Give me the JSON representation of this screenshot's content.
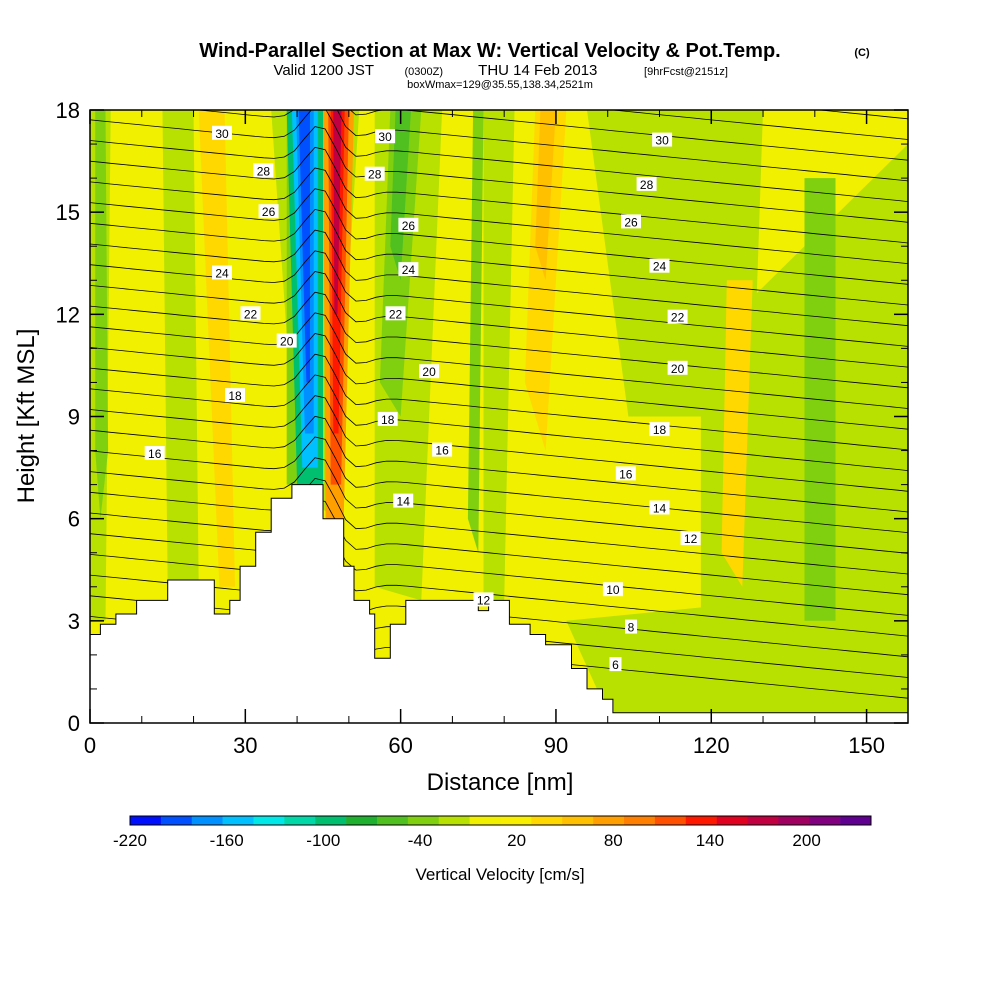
{
  "chart_data": {
    "type": "heatmap",
    "title": "Wind-Parallel Section at Max W: Vertical Velocity & Pot.Temp.",
    "title_mark": "(C)",
    "subtitle_valid": "Valid 1200 JST",
    "subtitle_z": "(0300Z)",
    "subtitle_date": "THU 14 Feb 2013",
    "subtitle_fcst": "[9hrFcst@2151z]",
    "subtitle_box": "boxWmax=129@35.55,138.34,2521m",
    "xlabel": "Distance [nm]",
    "ylabel": "Height [Kft MSL]",
    "xlim": [
      0,
      158
    ],
    "ylim": [
      0,
      18
    ],
    "x_ticks": [
      "0",
      "30",
      "60",
      "90",
      "120",
      "150"
    ],
    "x_tick_values": [
      0,
      30,
      60,
      90,
      120,
      150
    ],
    "y_ticks": [
      "0",
      "3",
      "6",
      "9",
      "12",
      "15",
      "18"
    ],
    "y_tick_values": [
      0,
      3,
      6,
      9,
      12,
      15,
      18
    ],
    "colorbar": {
      "label": "Vertical Velocity [cm/s]",
      "min": -220,
      "max": 240,
      "tick_labels": [
        "-220",
        "-160",
        "-100",
        "-40",
        "20",
        "80",
        "140",
        "200"
      ],
      "tick_values": [
        -220,
        -160,
        -100,
        -40,
        20,
        80,
        140,
        200
      ],
      "colors": [
        "#0010ff",
        "#0050ff",
        "#0090ff",
        "#00c0ff",
        "#00e8e8",
        "#00d8a8",
        "#00c070",
        "#20b030",
        "#50c020",
        "#80d010",
        "#b8e000",
        "#f0f000",
        "#f8f000",
        "#ffd800",
        "#ffc000",
        "#ffa000",
        "#ff8000",
        "#ff5000",
        "#ff1800",
        "#e00020",
        "#c00040",
        "#a00060",
        "#800080",
        "#600090"
      ]
    },
    "terrain_kft": [
      [
        0,
        2.6
      ],
      [
        2,
        2.6
      ],
      [
        2,
        2.9
      ],
      [
        5,
        2.9
      ],
      [
        5,
        3.2
      ],
      [
        9,
        3.2
      ],
      [
        9,
        3.6
      ],
      [
        15,
        3.6
      ],
      [
        15,
        4.2
      ],
      [
        24,
        4.2
      ],
      [
        24,
        3.2
      ],
      [
        27,
        3.2
      ],
      [
        27,
        3.6
      ],
      [
        29,
        3.6
      ],
      [
        29,
        4.6
      ],
      [
        32,
        4.6
      ],
      [
        32,
        5.6
      ],
      [
        35,
        5.6
      ],
      [
        35,
        6.6
      ],
      [
        39,
        6.6
      ],
      [
        39,
        7.0
      ],
      [
        45,
        7.0
      ],
      [
        45,
        6.0
      ],
      [
        49,
        6.0
      ],
      [
        49,
        4.6
      ],
      [
        51,
        4.6
      ],
      [
        51,
        3.6
      ],
      [
        54,
        3.6
      ],
      [
        54,
        3.2
      ],
      [
        55,
        3.2
      ],
      [
        55,
        1.9
      ],
      [
        58,
        1.9
      ],
      [
        58,
        2.9
      ],
      [
        61,
        2.9
      ],
      [
        61,
        3.6
      ],
      [
        64,
        3.6
      ],
      [
        64,
        3.6
      ],
      [
        75,
        3.6
      ],
      [
        75,
        3.3
      ],
      [
        77,
        3.3
      ],
      [
        77,
        3.6
      ],
      [
        81,
        3.6
      ],
      [
        81,
        2.9
      ],
      [
        85,
        2.9
      ],
      [
        85,
        2.6
      ],
      [
        88,
        2.6
      ],
      [
        88,
        2.3
      ],
      [
        93,
        2.3
      ],
      [
        93,
        1.6
      ],
      [
        96,
        1.6
      ],
      [
        96,
        1.0
      ],
      [
        99,
        1.0
      ],
      [
        99,
        0.7
      ],
      [
        101,
        0.7
      ],
      [
        101,
        0.3
      ],
      [
        158,
        0.3
      ]
    ],
    "theta_levels": [
      6,
      8,
      10,
      12,
      14,
      16,
      18,
      20,
      22,
      24,
      26,
      28,
      30
    ],
    "contour_labels": [
      {
        "text": "30",
        "x": 25.5,
        "y": 17.3
      },
      {
        "text": "28",
        "x": 33.5,
        "y": 16.2
      },
      {
        "text": "26",
        "x": 34.5,
        "y": 15.0
      },
      {
        "text": "24",
        "x": 25.5,
        "y": 13.2
      },
      {
        "text": "22",
        "x": 31.0,
        "y": 12.0
      },
      {
        "text": "20",
        "x": 38.0,
        "y": 11.2
      },
      {
        "text": "18",
        "x": 28.0,
        "y": 9.6
      },
      {
        "text": "16",
        "x": 12.5,
        "y": 7.9
      },
      {
        "text": "30",
        "x": 57.0,
        "y": 17.2
      },
      {
        "text": "28",
        "x": 55.0,
        "y": 16.1
      },
      {
        "text": "26",
        "x": 61.5,
        "y": 14.6
      },
      {
        "text": "24",
        "x": 61.5,
        "y": 13.3
      },
      {
        "text": "22",
        "x": 59.0,
        "y": 12.0
      },
      {
        "text": "20",
        "x": 65.5,
        "y": 10.3
      },
      {
        "text": "18",
        "x": 57.5,
        "y": 8.9
      },
      {
        "text": "16",
        "x": 68.0,
        "y": 8.0
      },
      {
        "text": "14",
        "x": 60.5,
        "y": 6.5
      },
      {
        "text": "12",
        "x": 76.0,
        "y": 3.6
      },
      {
        "text": "30",
        "x": 110.5,
        "y": 17.1
      },
      {
        "text": "28",
        "x": 107.5,
        "y": 15.8
      },
      {
        "text": "26",
        "x": 104.5,
        "y": 14.7
      },
      {
        "text": "24",
        "x": 110.0,
        "y": 13.4
      },
      {
        "text": "22",
        "x": 113.5,
        "y": 11.9
      },
      {
        "text": "20",
        "x": 113.5,
        "y": 10.4
      },
      {
        "text": "18",
        "x": 110.0,
        "y": 8.6
      },
      {
        "text": "16",
        "x": 103.5,
        "y": 7.3
      },
      {
        "text": "14",
        "x": 110.0,
        "y": 6.3
      },
      {
        "text": "12",
        "x": 116.0,
        "y": 5.4
      },
      {
        "text": "10",
        "x": 101.0,
        "y": 3.9
      },
      {
        "text": "8",
        "x": 104.5,
        "y": 2.8
      },
      {
        "text": "6",
        "x": 101.5,
        "y": 1.7
      }
    ]
  }
}
